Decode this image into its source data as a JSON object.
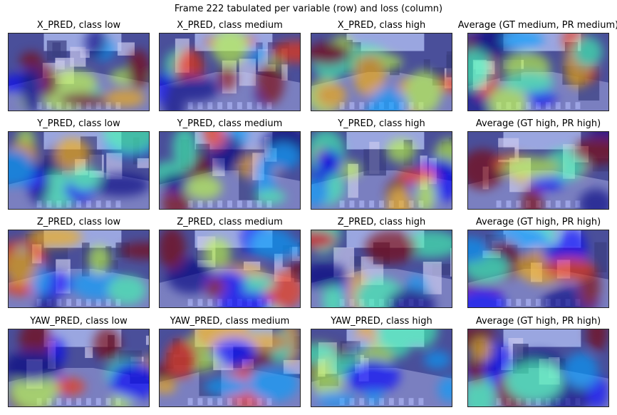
{
  "figure_title": "Frame 222 tabulated per variable (row) and loss (column)",
  "rows": [
    {
      "panels": [
        {
          "title": "X_PRED, class low"
        },
        {
          "title": "X_PRED, class medium"
        },
        {
          "title": "X_PRED, class high"
        },
        {
          "title": "Average (GT medium, PR medium)"
        }
      ]
    },
    {
      "panels": [
        {
          "title": "Y_PRED, class low"
        },
        {
          "title": "Y_PRED, class medium"
        },
        {
          "title": "Y_PRED, class high"
        },
        {
          "title": "Average (GT high, PR high)"
        }
      ]
    },
    {
      "panels": [
        {
          "title": "Z_PRED, class low"
        },
        {
          "title": "Z_PRED, class medium"
        },
        {
          "title": "Z_PRED, class high"
        },
        {
          "title": "Average (GT high, PR high)"
        }
      ]
    },
    {
      "panels": [
        {
          "title": "YAW_PRED, class low"
        },
        {
          "title": "YAW_PRED, class medium"
        },
        {
          "title": "YAW_PRED, class high"
        },
        {
          "title": "Average (GT high, PR high)"
        }
      ]
    }
  ],
  "colormap": [
    "#00007f",
    "#0000ff",
    "#00a0ff",
    "#40ffb0",
    "#c0ff40",
    "#ffb000",
    "#ff3000",
    "#800000"
  ]
}
